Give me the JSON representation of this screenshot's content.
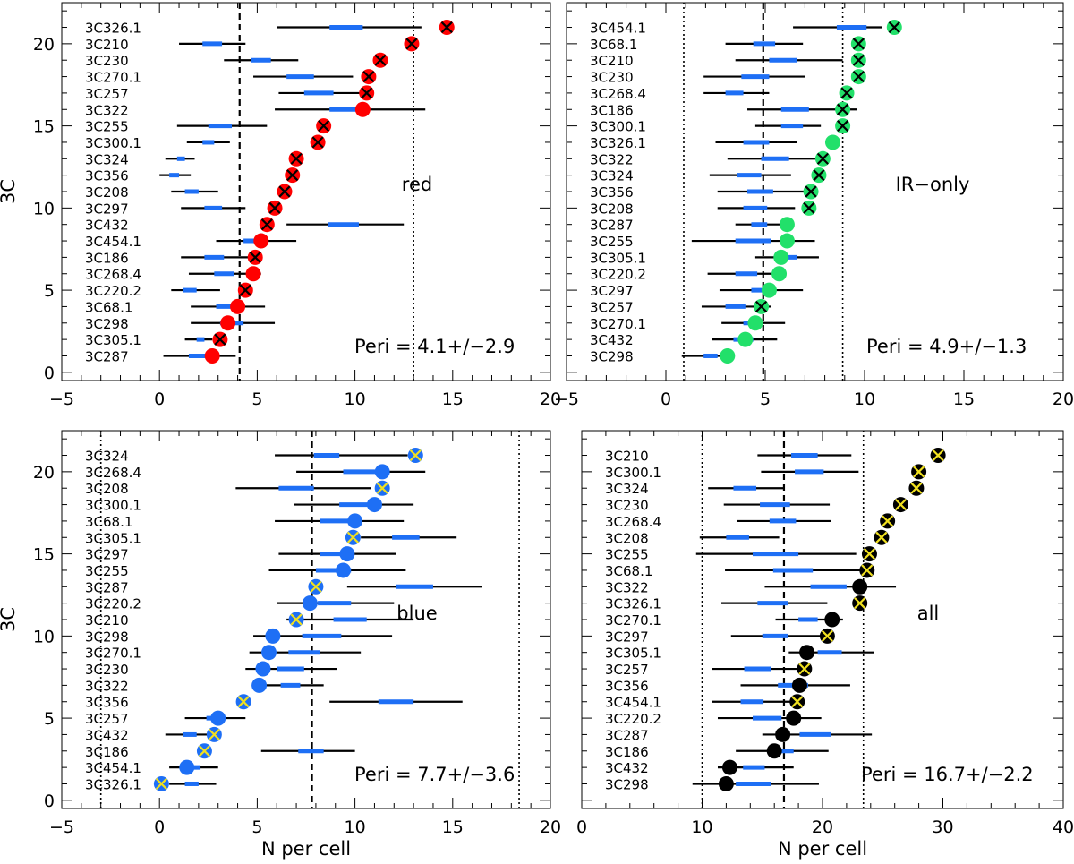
{
  "chart_data": [
    {
      "type": "scatter",
      "panel": "red",
      "label": "red",
      "annotation": "Peri = 4.1+/−2.9",
      "ylabel": "3C",
      "xlabel": "",
      "xlim": [
        -5,
        20
      ],
      "ylim": [
        -0.5,
        22.5
      ],
      "xticks": [
        -5,
        0,
        5,
        10,
        15,
        20
      ],
      "xticklabels": [
        "−5",
        "0",
        "5",
        "10",
        "15",
        "20"
      ],
      "yticks": [
        0,
        5,
        10,
        15,
        20
      ],
      "marker_color": "#ff0000",
      "vlines": [
        {
          "x": 4.1,
          "style": "dashed"
        },
        {
          "x": 13.0,
          "style": "dotted"
        }
      ],
      "sources": [
        {
          "name": "3C326.1",
          "point": 14.7,
          "cross": true,
          "lo": 6.0,
          "hi": 13.4,
          "blo": 8.7,
          "bhi": 10.4
        },
        {
          "name": "3C210",
          "point": 12.9,
          "cross": true,
          "lo": 1.0,
          "hi": 4.4,
          "blo": 2.2,
          "bhi": 3.2
        },
        {
          "name": "3C230",
          "point": 11.3,
          "cross": true,
          "lo": 3.3,
          "hi": 7.1,
          "blo": 4.7,
          "bhi": 5.7
        },
        {
          "name": "3C270.1",
          "point": 10.7,
          "cross": true,
          "lo": 4.8,
          "hi": 9.9,
          "blo": 6.5,
          "bhi": 7.9
        },
        {
          "name": "3C257",
          "point": 10.6,
          "cross": true,
          "lo": 6.1,
          "hi": 10.6,
          "blo": 7.4,
          "bhi": 8.9
        },
        {
          "name": "3C322",
          "point": 10.4,
          "cross": false,
          "lo": 5.9,
          "hi": 13.6,
          "blo": 8.7,
          "bhi": 10.4
        },
        {
          "name": "3C255",
          "point": 8.4,
          "cross": true,
          "lo": 0.9,
          "hi": 5.5,
          "blo": 2.5,
          "bhi": 3.7
        },
        {
          "name": "3C300.1",
          "point": 8.1,
          "cross": true,
          "lo": 1.4,
          "hi": 3.6,
          "blo": 2.2,
          "bhi": 2.8
        },
        {
          "name": "3C324",
          "point": 7.0,
          "cross": true,
          "lo": 0.3,
          "hi": 1.8,
          "blo": 0.9,
          "bhi": 1.3
        },
        {
          "name": "3C356",
          "point": 6.8,
          "cross": true,
          "lo": 0.0,
          "hi": 1.6,
          "blo": 0.5,
          "bhi": 1.0
        },
        {
          "name": "3C208",
          "point": 6.4,
          "cross": true,
          "lo": 0.6,
          "hi": 3.0,
          "blo": 1.3,
          "bhi": 2.0
        },
        {
          "name": "3C297",
          "point": 5.9,
          "cross": true,
          "lo": 1.1,
          "hi": 4.4,
          "blo": 2.3,
          "bhi": 3.2
        },
        {
          "name": "3C432",
          "point": 5.5,
          "cross": true,
          "lo": 6.5,
          "hi": 12.5,
          "blo": 8.6,
          "bhi": 10.2
        },
        {
          "name": "3C454.1",
          "point": 5.2,
          "cross": false,
          "lo": 2.9,
          "hi": 7.0,
          "blo": 4.3,
          "bhi": 5.3
        },
        {
          "name": "3C186",
          "point": 4.9,
          "cross": true,
          "lo": 1.1,
          "hi": 4.8,
          "blo": 2.3,
          "bhi": 3.3
        },
        {
          "name": "3C268.4",
          "point": 4.8,
          "cross": false,
          "lo": 1.5,
          "hi": 5.2,
          "blo": 2.8,
          "bhi": 3.8
        },
        {
          "name": "3C220.2",
          "point": 4.4,
          "cross": true,
          "lo": 0.6,
          "hi": 3.1,
          "blo": 1.2,
          "bhi": 1.9
        },
        {
          "name": "3C68.1",
          "point": 4.0,
          "cross": false,
          "lo": 1.6,
          "hi": 5.4,
          "blo": 2.9,
          "bhi": 4.0
        },
        {
          "name": "3C298",
          "point": 3.5,
          "cross": false,
          "lo": 1.6,
          "hi": 5.9,
          "blo": 3.1,
          "bhi": 4.3
        },
        {
          "name": "3C305.1",
          "point": 3.1,
          "cross": true,
          "lo": 1.3,
          "hi": 2.7,
          "blo": 1.9,
          "bhi": 2.3
        },
        {
          "name": "3C287",
          "point": 2.7,
          "cross": false,
          "lo": 0.2,
          "hi": 3.9,
          "blo": 1.5,
          "bhi": 2.5
        }
      ]
    },
    {
      "type": "scatter",
      "panel": "ir-only",
      "label": "IR−only",
      "annotation": "Peri = 4.9+/−1.3",
      "ylabel": "",
      "xlabel": "",
      "xlim": [
        -5,
        20
      ],
      "ylim": [
        -0.5,
        22.5
      ],
      "xticks": [
        -5,
        0,
        5,
        10,
        15,
        20
      ],
      "xticklabels": [
        "−5",
        "0",
        "5",
        "10",
        "15",
        "20"
      ],
      "yticks": [
        0,
        5,
        10,
        15,
        20
      ],
      "marker_color": "#22e06a",
      "vlines": [
        {
          "x": 4.9,
          "style": "dashed"
        },
        {
          "x": 0.9,
          "style": "dotted"
        },
        {
          "x": 8.9,
          "style": "dotted"
        }
      ],
      "sources": [
        {
          "name": "3C454.1",
          "point": 11.5,
          "cross": true,
          "lo": 6.4,
          "hi": 10.9,
          "blo": 8.6,
          "bhi": 10.1
        },
        {
          "name": "3C68.1",
          "point": 9.7,
          "cross": true,
          "lo": 3.0,
          "hi": 6.9,
          "blo": 4.4,
          "bhi": 5.5
        },
        {
          "name": "3C210",
          "point": 9.7,
          "cross": true,
          "lo": 3.5,
          "hi": 8.9,
          "blo": 5.2,
          "bhi": 6.6
        },
        {
          "name": "3C230",
          "point": 9.7,
          "cross": true,
          "lo": 1.9,
          "hi": 7.0,
          "blo": 3.8,
          "bhi": 5.2
        },
        {
          "name": "3C268.4",
          "point": 9.1,
          "cross": true,
          "lo": 1.9,
          "hi": 5.2,
          "blo": 3.0,
          "bhi": 3.9
        },
        {
          "name": "3C186",
          "point": 8.9,
          "cross": true,
          "lo": 4.1,
          "hi": 9.6,
          "blo": 5.8,
          "bhi": 7.2
        },
        {
          "name": "3C300.1",
          "point": 8.9,
          "cross": true,
          "lo": 4.5,
          "hi": 7.8,
          "blo": 5.8,
          "bhi": 6.9
        },
        {
          "name": "3C326.1",
          "point": 8.4,
          "cross": false,
          "lo": 2.5,
          "hi": 6.6,
          "blo": 3.9,
          "bhi": 5.2
        },
        {
          "name": "3C322",
          "point": 7.9,
          "cross": true,
          "lo": 3.1,
          "hi": 7.8,
          "blo": 4.8,
          "bhi": 6.2
        },
        {
          "name": "3C324",
          "point": 7.7,
          "cross": true,
          "lo": 2.2,
          "hi": 6.3,
          "blo": 3.6,
          "bhi": 4.8
        },
        {
          "name": "3C356",
          "point": 7.3,
          "cross": true,
          "lo": 2.6,
          "hi": 7.0,
          "blo": 4.1,
          "bhi": 5.4
        },
        {
          "name": "3C208",
          "point": 7.2,
          "cross": true,
          "lo": 2.6,
          "hi": 6.5,
          "blo": 3.9,
          "bhi": 5.1
        },
        {
          "name": "3C287",
          "point": 6.1,
          "cross": false,
          "lo": 3.5,
          "hi": 5.9,
          "blo": 4.3,
          "bhi": 5.1
        },
        {
          "name": "3C255",
          "point": 6.1,
          "cross": false,
          "lo": 1.3,
          "hi": 7.5,
          "blo": 3.5,
          "bhi": 5.3
        },
        {
          "name": "3C305.1",
          "point": 5.8,
          "cross": false,
          "lo": 4.5,
          "hi": 7.7,
          "blo": 5.6,
          "bhi": 6.6
        },
        {
          "name": "3C220.2",
          "point": 5.7,
          "cross": false,
          "lo": 2.1,
          "hi": 6.0,
          "blo": 3.5,
          "bhi": 4.6
        },
        {
          "name": "3C297",
          "point": 5.2,
          "cross": false,
          "lo": 2.7,
          "hi": 6.9,
          "blo": 4.3,
          "bhi": 5.4
        },
        {
          "name": "3C257",
          "point": 4.8,
          "cross": true,
          "lo": 1.8,
          "hi": 5.3,
          "blo": 3.0,
          "bhi": 4.0
        },
        {
          "name": "3C270.1",
          "point": 4.5,
          "cross": false,
          "lo": 2.8,
          "hi": 6.0,
          "blo": 3.9,
          "bhi": 4.9
        },
        {
          "name": "3C432",
          "point": 4.0,
          "cross": false,
          "lo": 2.3,
          "hi": 5.6,
          "blo": 3.4,
          "bhi": 4.4
        },
        {
          "name": "3C298",
          "point": 3.1,
          "cross": false,
          "lo": 0.8,
          "hi": 3.4,
          "blo": 1.9,
          "bhi": 2.6
        }
      ]
    },
    {
      "type": "scatter",
      "panel": "blue",
      "label": "blue",
      "annotation": "Peri = 7.7+/−3.6",
      "ylabel": "3C",
      "xlabel": "N per cell",
      "xlim": [
        -5,
        20
      ],
      "ylim": [
        -0.5,
        22.5
      ],
      "xticks": [
        -5,
        0,
        5,
        10,
        15,
        20
      ],
      "xticklabels": [
        "−5",
        "0",
        "5",
        "10",
        "15",
        "20"
      ],
      "yticks": [
        0,
        5,
        10,
        15,
        20
      ],
      "marker_color": "#1e6ff5",
      "cross_color": "#f0e020",
      "vlines": [
        {
          "x": 7.8,
          "style": "dashed"
        },
        {
          "x": -3.0,
          "style": "dotted"
        },
        {
          "x": 18.4,
          "style": "dotted"
        }
      ],
      "sources": [
        {
          "name": "3C324",
          "point": 13.1,
          "cross": true,
          "lo": 5.9,
          "hi": 12.7,
          "blo": 7.9,
          "bhi": 9.2
        },
        {
          "name": "3C268.4",
          "point": 11.4,
          "cross": false,
          "lo": 7.0,
          "hi": 13.6,
          "blo": 9.4,
          "bhi": 11.1
        },
        {
          "name": "3C208",
          "point": 11.4,
          "cross": true,
          "lo": 3.9,
          "hi": 10.8,
          "blo": 6.1,
          "bhi": 7.9
        },
        {
          "name": "3C300.1",
          "point": 11.0,
          "cross": false,
          "lo": 6.9,
          "hi": 13.0,
          "blo": 9.2,
          "bhi": 10.7
        },
        {
          "name": "3C68.1",
          "point": 10.0,
          "cross": false,
          "lo": 5.9,
          "hi": 12.5,
          "blo": 8.2,
          "bhi": 9.9
        },
        {
          "name": "3C305.1",
          "point": 9.9,
          "cross": true,
          "lo": 10.3,
          "hi": 15.2,
          "blo": 11.9,
          "bhi": 13.3
        },
        {
          "name": "3C297",
          "point": 9.6,
          "cross": false,
          "lo": 6.1,
          "hi": 12.1,
          "blo": 8.2,
          "bhi": 9.7
        },
        {
          "name": "3C255",
          "point": 9.4,
          "cross": false,
          "lo": 5.6,
          "hi": 12.6,
          "blo": 8.0,
          "bhi": 9.8
        },
        {
          "name": "3C287",
          "point": 8.0,
          "cross": true,
          "lo": 9.6,
          "hi": 16.5,
          "blo": 12.1,
          "bhi": 14.0
        },
        {
          "name": "3C220.2",
          "point": 7.7,
          "cross": false,
          "lo": 6.0,
          "hi": 12.0,
          "blo": 8.1,
          "bhi": 9.8
        },
        {
          "name": "3C210",
          "point": 7.0,
          "cross": true,
          "lo": 6.5,
          "hi": 13.0,
          "blo": 8.9,
          "bhi": 10.6
        },
        {
          "name": "3C298",
          "point": 5.8,
          "cross": false,
          "lo": 4.8,
          "hi": 11.9,
          "blo": 7.3,
          "bhi": 9.3
        },
        {
          "name": "3C270.1",
          "point": 5.6,
          "cross": false,
          "lo": 4.6,
          "hi": 10.3,
          "blo": 6.6,
          "bhi": 8.2
        },
        {
          "name": "3C230",
          "point": 5.3,
          "cross": false,
          "lo": 4.4,
          "hi": 9.1,
          "blo": 6.0,
          "bhi": 7.4
        },
        {
          "name": "3C322",
          "point": 5.1,
          "cross": false,
          "lo": 5.1,
          "hi": 8.4,
          "blo": 6.2,
          "bhi": 7.2
        },
        {
          "name": "3C356",
          "point": 4.3,
          "cross": true,
          "lo": 8.7,
          "hi": 15.5,
          "blo": 11.2,
          "bhi": 13.0
        },
        {
          "name": "3C257",
          "point": 3.0,
          "cross": false,
          "lo": 1.3,
          "hi": 4.4,
          "blo": 2.4,
          "bhi": 3.3
        },
        {
          "name": "3C432",
          "point": 2.8,
          "cross": true,
          "lo": 0.3,
          "hi": 3.1,
          "blo": 1.2,
          "bhi": 1.9
        },
        {
          "name": "3C186",
          "point": 2.3,
          "cross": true,
          "lo": 5.2,
          "hi": 10.0,
          "blo": 7.1,
          "bhi": 8.4
        },
        {
          "name": "3C454.1",
          "point": 1.4,
          "cross": false,
          "lo": 0.5,
          "hi": 3.0,
          "blo": 1.4,
          "bhi": 2.1
        },
        {
          "name": "3C326.1",
          "point": 0.1,
          "cross": true,
          "lo": 0.5,
          "hi": 2.9,
          "blo": 1.3,
          "bhi": 2.0
        }
      ]
    },
    {
      "type": "scatter",
      "panel": "all",
      "label": "all",
      "annotation": "Peri = 16.7+/−2.2",
      "ylabel": "",
      "xlabel": "N per cell",
      "xlim": [
        0,
        40
      ],
      "ylim": [
        -0.5,
        22.5
      ],
      "xticks": [
        0,
        10,
        20,
        30,
        40
      ],
      "xticklabels": [
        "0",
        "10",
        "20",
        "30",
        "40"
      ],
      "yticks": [
        0,
        5,
        10,
        15,
        20
      ],
      "marker_color": "#000000",
      "cross_color": "#f0e020",
      "vlines": [
        {
          "x": 16.8,
          "style": "dashed"
        },
        {
          "x": 10.0,
          "style": "dotted"
        },
        {
          "x": 23.4,
          "style": "dotted"
        }
      ],
      "sources": [
        {
          "name": "3C210",
          "point": 29.6,
          "cross": true,
          "lo": 14.6,
          "hi": 22.4,
          "blo": 17.4,
          "bhi": 19.6
        },
        {
          "name": "3C300.1",
          "point": 28.0,
          "cross": true,
          "lo": 14.9,
          "hi": 23.0,
          "blo": 17.7,
          "bhi": 20.1
        },
        {
          "name": "3C324",
          "point": 27.8,
          "cross": true,
          "lo": 10.5,
          "hi": 16.8,
          "blo": 12.6,
          "bhi": 14.5
        },
        {
          "name": "3C230",
          "point": 26.5,
          "cross": true,
          "lo": 11.8,
          "hi": 20.6,
          "blo": 14.8,
          "bhi": 17.3
        },
        {
          "name": "3C268.4",
          "point": 25.4,
          "cross": true,
          "lo": 12.9,
          "hi": 20.7,
          "blo": 15.6,
          "bhi": 17.8
        },
        {
          "name": "3C208",
          "point": 24.9,
          "cross": true,
          "lo": 9.8,
          "hi": 16.4,
          "blo": 12.0,
          "bhi": 13.9
        },
        {
          "name": "3C255",
          "point": 23.9,
          "cross": true,
          "lo": 9.5,
          "hi": 22.8,
          "blo": 14.2,
          "bhi": 18.0
        },
        {
          "name": "3C68.1",
          "point": 23.7,
          "cross": true,
          "lo": 11.9,
          "hi": 23.6,
          "blo": 15.9,
          "bhi": 19.2
        },
        {
          "name": "3C322",
          "point": 23.1,
          "cross": false,
          "lo": 15.2,
          "hi": 26.1,
          "blo": 19.0,
          "bhi": 22.0
        },
        {
          "name": "3C326.1",
          "point": 23.1,
          "cross": true,
          "lo": 11.6,
          "hi": 20.4,
          "blo": 14.6,
          "bhi": 17.1
        },
        {
          "name": "3C270.1",
          "point": 20.8,
          "cross": false,
          "lo": 16.1,
          "hi": 21.7,
          "blo": 18.0,
          "bhi": 19.6
        },
        {
          "name": "3C297",
          "point": 20.4,
          "cross": true,
          "lo": 12.4,
          "hi": 19.9,
          "blo": 15.0,
          "bhi": 17.1
        },
        {
          "name": "3C305.1",
          "point": 18.7,
          "cross": false,
          "lo": 17.2,
          "hi": 24.3,
          "blo": 19.6,
          "bhi": 21.6
        },
        {
          "name": "3C257",
          "point": 18.5,
          "cross": true,
          "lo": 10.8,
          "hi": 18.7,
          "blo": 13.5,
          "bhi": 15.7
        },
        {
          "name": "3C356",
          "point": 18.1,
          "cross": false,
          "lo": 13.2,
          "hi": 22.3,
          "blo": 16.3,
          "bhi": 18.8
        },
        {
          "name": "3C454.1",
          "point": 17.9,
          "cross": true,
          "lo": 10.8,
          "hi": 17.8,
          "blo": 13.2,
          "bhi": 15.1
        },
        {
          "name": "3C220.2",
          "point": 17.6,
          "cross": false,
          "lo": 11.3,
          "hi": 19.9,
          "blo": 14.2,
          "bhi": 16.6
        },
        {
          "name": "3C287",
          "point": 16.7,
          "cross": false,
          "lo": 15.0,
          "hi": 24.1,
          "blo": 18.1,
          "bhi": 20.7
        },
        {
          "name": "3C186",
          "point": 16.0,
          "cross": false,
          "lo": 12.8,
          "hi": 20.5,
          "blo": 15.4,
          "bhi": 17.6
        },
        {
          "name": "3C432",
          "point": 12.3,
          "cross": false,
          "lo": 11.3,
          "hi": 17.6,
          "blo": 13.4,
          "bhi": 15.2
        },
        {
          "name": "3C298",
          "point": 12.0,
          "cross": false,
          "lo": 9.2,
          "hi": 19.7,
          "blo": 12.8,
          "bhi": 15.7
        }
      ]
    }
  ]
}
